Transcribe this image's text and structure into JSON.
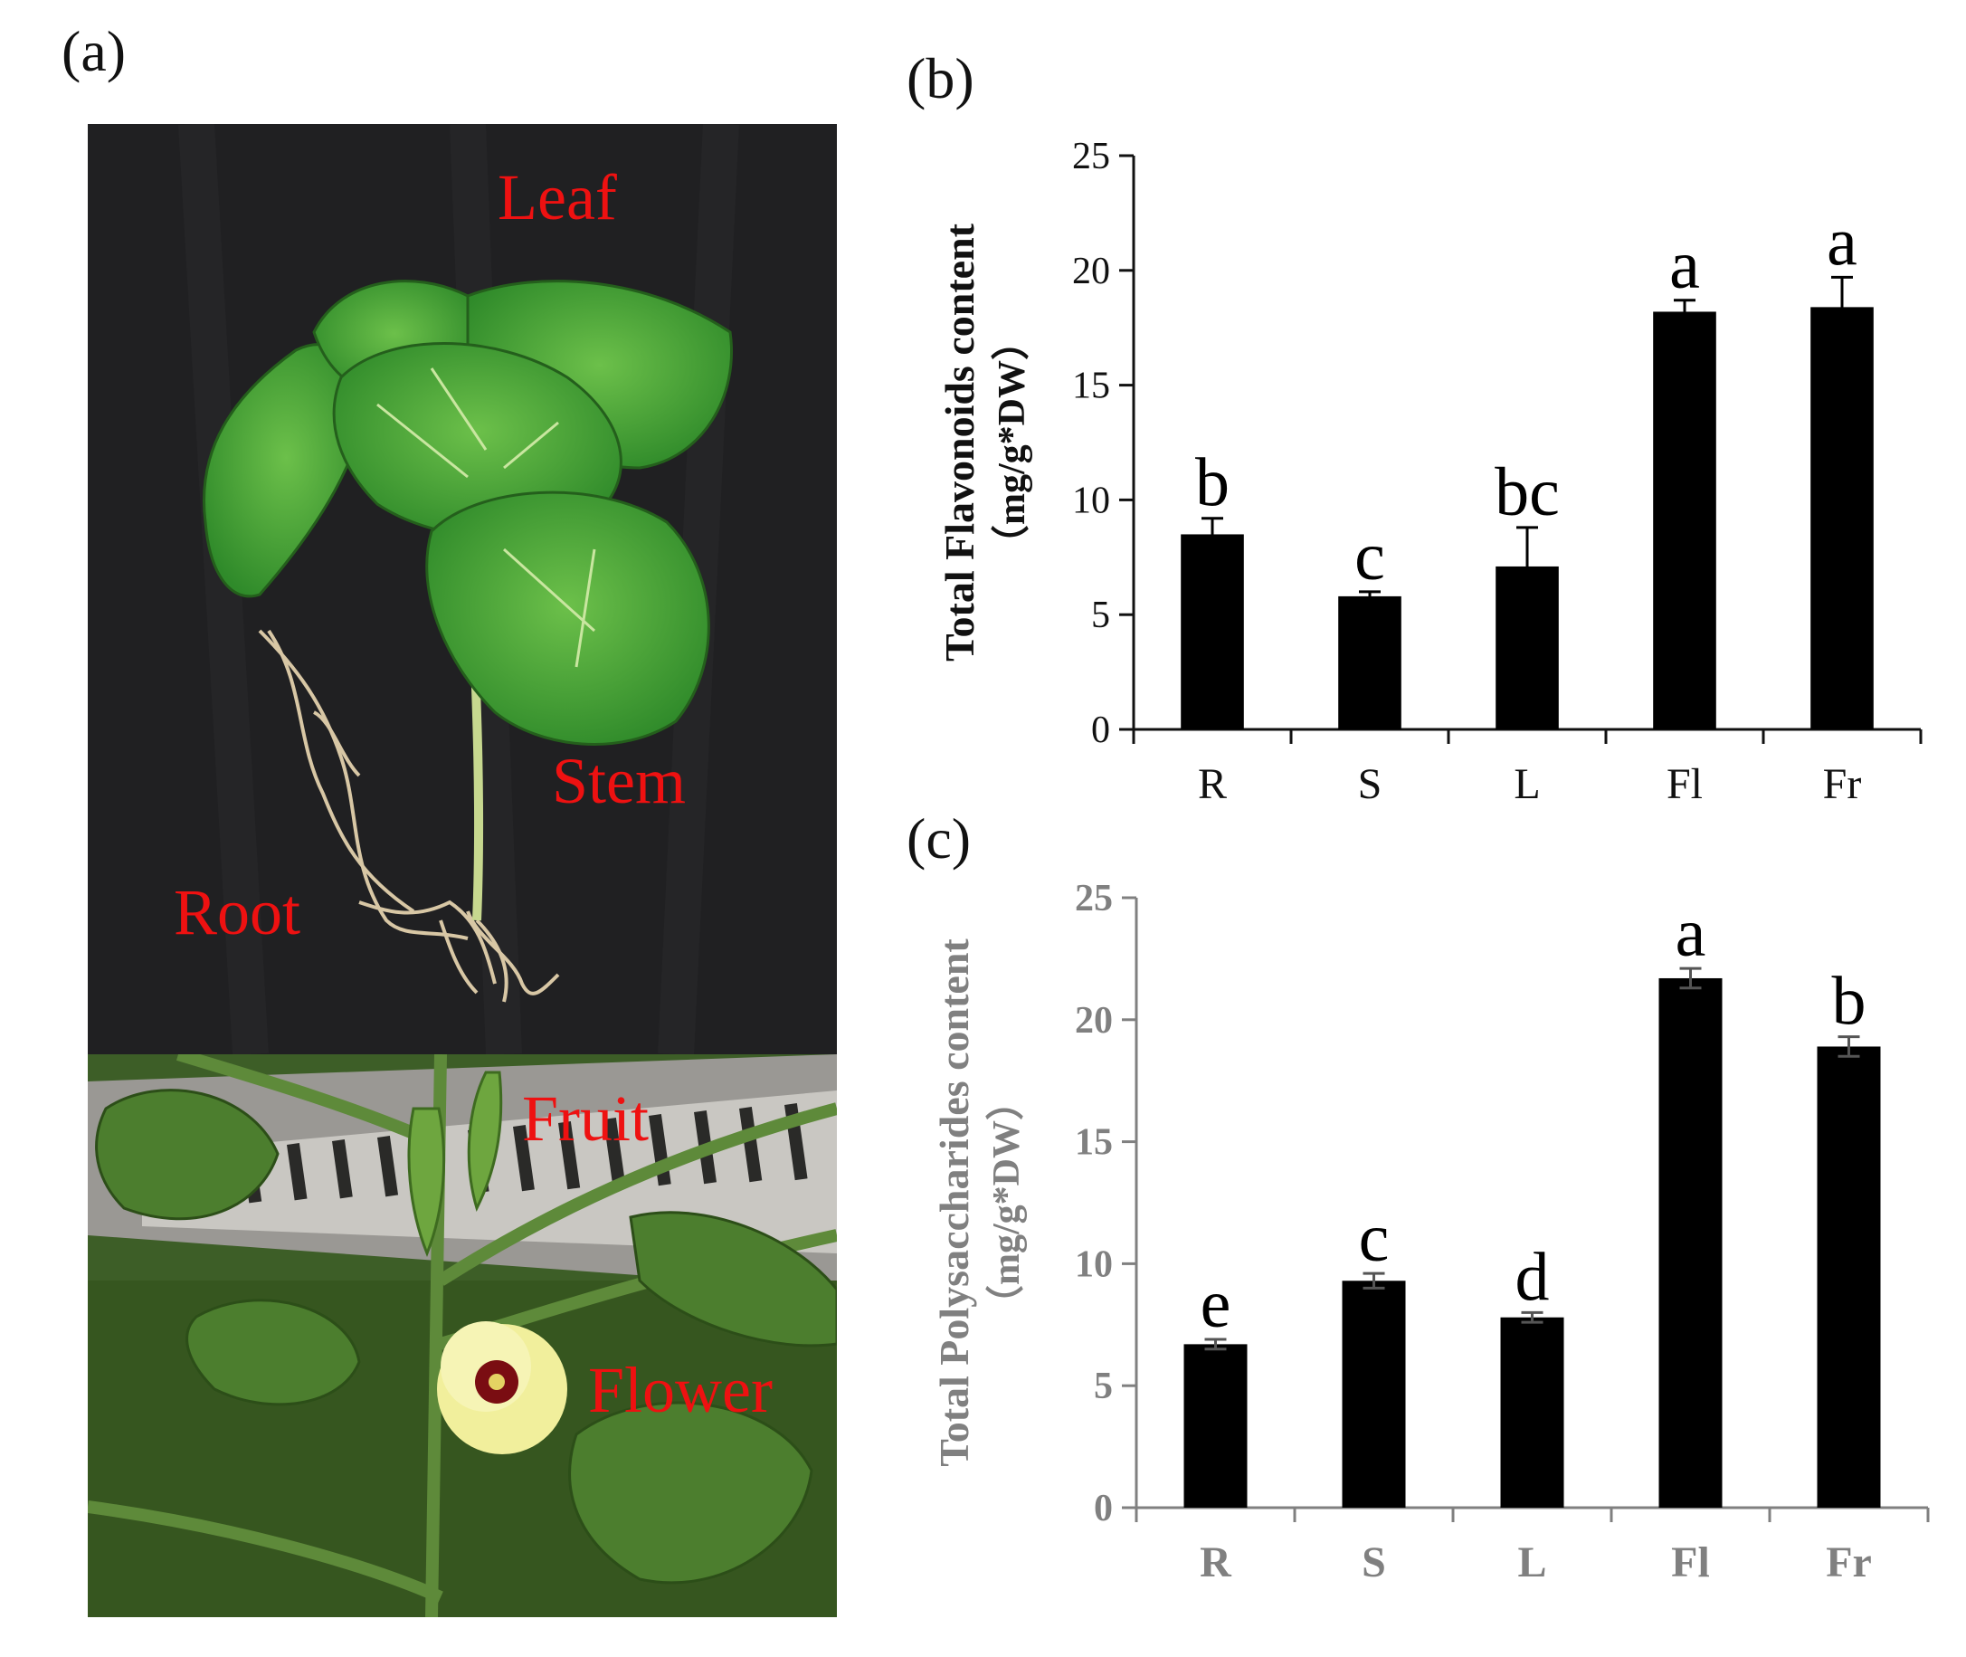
{
  "panels": {
    "a": "(a)",
    "b": "(b)",
    "c": "(c)"
  },
  "photo_labels": {
    "leaf": "Leaf",
    "stem": "Stem",
    "root": "Root",
    "fruit": "Fruit",
    "flower": "Flower"
  },
  "colors": {
    "organ_label": "#ee1111",
    "bar": "#000000",
    "axis_b": "#111111",
    "axis_c": "#808080"
  },
  "chart_data": [
    {
      "type": "bar",
      "categories": [
        "R",
        "S",
        "L",
        "Fl",
        "Fr"
      ],
      "values": [
        8.5,
        5.8,
        7.1,
        18.2,
        18.4
      ],
      "errors": [
        0.7,
        0.2,
        1.7,
        0.5,
        1.3
      ],
      "significance": [
        "b",
        "c",
        "bc",
        "a",
        "a"
      ],
      "title": "",
      "xlabel": "",
      "ylabel": "Total Flavonoids content",
      "ylabel_unit": "（mg/g*DW）",
      "ylim": [
        0,
        25
      ],
      "yticks": [
        0,
        5,
        10,
        15,
        20,
        25
      ],
      "grid": false
    },
    {
      "type": "bar",
      "categories": [
        "R",
        "S",
        "L",
        "Fl",
        "Fr"
      ],
      "values": [
        6.7,
        9.3,
        7.8,
        21.7,
        18.9
      ],
      "errors": [
        0.2,
        0.3,
        0.2,
        0.4,
        0.4
      ],
      "significance": [
        "e",
        "c",
        "d",
        "a",
        "b"
      ],
      "title": "",
      "xlabel": "",
      "ylabel": "Total Polysaccharides content",
      "ylabel_unit": "（mg/g*DW）",
      "ylim": [
        0,
        25
      ],
      "yticks": [
        0,
        5,
        10,
        15,
        20,
        25
      ],
      "grid": false
    }
  ]
}
